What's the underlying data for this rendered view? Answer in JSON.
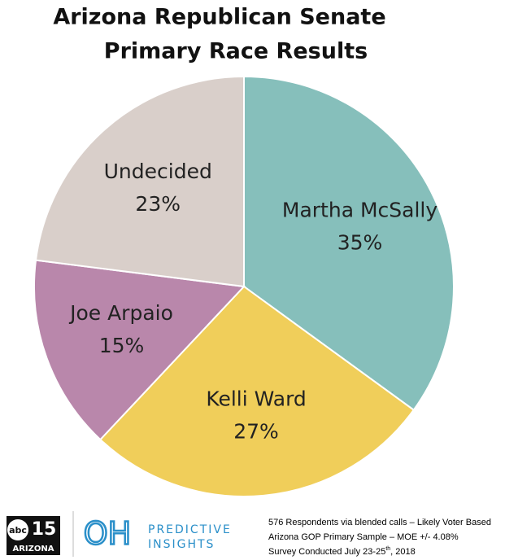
{
  "chart_data": {
    "type": "pie",
    "title": [
      "Arizona Republican Senate",
      "Primary Race Results"
    ],
    "categories": [
      "Martha McSally",
      "Kelli Ward",
      "Joe Arpaio",
      "Undecided"
    ],
    "values": [
      35,
      27,
      15,
      23
    ],
    "value_labels": [
      "35%",
      "27%",
      "15%",
      "23%"
    ],
    "colors": [
      "#86bfbb",
      "#f0ce5a",
      "#b987ab",
      "#d9cfca"
    ]
  },
  "footer": {
    "abc_logo": {
      "text": "abc",
      "number": "15",
      "region": "ARIZONA"
    },
    "oh_logo": {
      "mark": "OH",
      "line1": "PREDICTIVE",
      "line2": "INSIGHTS"
    },
    "notes": [
      "576 Respondents via blended calls – Likely Voter Based",
      "Arizona GOP Primary Sample – MOE +/- 4.08%"
    ],
    "survey": {
      "before": "Survey Conducted July 23-25",
      "sup": "th",
      "after": ", 2018"
    }
  }
}
